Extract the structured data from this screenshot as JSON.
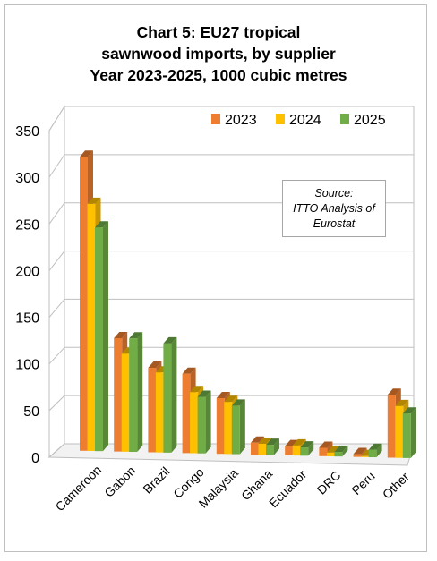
{
  "title": {
    "line1": "Chart 5: EU27 tropical",
    "line2": "sawnwood imports, by supplier",
    "line3": "Year 2023-2025, 1000 cubic metres"
  },
  "source": {
    "line1": "Source:",
    "line2": "ITTO Analysis of",
    "line3": "Eurostat"
  },
  "chart_data": {
    "type": "bar",
    "categories": [
      "Cameroon",
      "Gabon",
      "Brazil",
      "Congo",
      "Malaysia",
      "Ghana",
      "Ecuador",
      "DRC",
      "Peru",
      "Other"
    ],
    "series": [
      {
        "name": "2023",
        "color": "#ED7D31",
        "values": [
          325,
          125,
          93,
          87,
          61,
          13,
          10,
          9,
          3,
          68
        ]
      },
      {
        "name": "2024",
        "color": "#FFC000",
        "values": [
          273,
          108,
          88,
          67,
          57,
          12,
          11,
          4,
          1,
          56
        ]
      },
      {
        "name": "2025",
        "color": "#70AD47",
        "values": [
          247,
          125,
          120,
          62,
          53,
          11,
          9,
          5,
          8,
          48
        ]
      }
    ],
    "yticks": [
      0,
      50,
      100,
      150,
      200,
      250,
      300,
      350
    ],
    "ylim": [
      0,
      350
    ],
    "grid": true,
    "legend": "top-right",
    "projection": "3d-perspective"
  }
}
